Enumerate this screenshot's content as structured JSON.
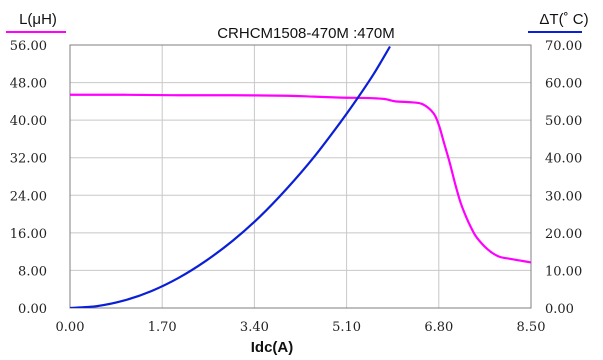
{
  "chart_data": {
    "type": "line",
    "title": "CRHCM1508-470M :470M",
    "xlabel": "Idc(A)",
    "ylabel_left": "L(μH)",
    "ylabel_right": "ΔT(˚ C)",
    "xlim": [
      0,
      8.5
    ],
    "ylim_left": [
      0,
      56
    ],
    "ylim_right": [
      0,
      70
    ],
    "x_ticks": [
      "0.00",
      "1.70",
      "3.40",
      "5.10",
      "6.80",
      "8.50"
    ],
    "y_left_ticks": [
      "0.00",
      "8.00",
      "16.00",
      "24.00",
      "32.00",
      "40.00",
      "48.00",
      "56.00"
    ],
    "y_right_ticks": [
      "0.00",
      "10.00",
      "20.00",
      "30.00",
      "40.00",
      "50.00",
      "60.00",
      "70.00"
    ],
    "grid": true,
    "series": [
      {
        "name": "L(μH)",
        "axis": "left",
        "color": "#ff00ff",
        "x": [
          0.0,
          1.0,
          2.0,
          3.0,
          4.0,
          4.5,
          5.0,
          5.5,
          5.8,
          6.0,
          6.3,
          6.5,
          6.7,
          6.8,
          6.9,
          7.0,
          7.1,
          7.2,
          7.3,
          7.4,
          7.5,
          7.7,
          7.9,
          8.1,
          8.3,
          8.5
        ],
        "y": [
          45.4,
          45.4,
          45.3,
          45.3,
          45.2,
          45.0,
          44.8,
          44.7,
          44.5,
          44.0,
          43.8,
          43.4,
          41.5,
          39.0,
          35.0,
          31.0,
          26.5,
          22.5,
          19.5,
          17.0,
          15.0,
          12.5,
          11.0,
          10.5,
          10.1,
          9.7
        ]
      },
      {
        "name": "ΔT(˚ C)",
        "axis": "right",
        "color": "#0a1fd6",
        "x": [
          0.0,
          0.5,
          1.0,
          1.5,
          2.0,
          2.5,
          3.0,
          3.5,
          4.0,
          4.5,
          5.0,
          5.3,
          5.6,
          5.9
        ],
        "y": [
          0.0,
          0.5,
          2.0,
          4.5,
          8.0,
          12.5,
          17.9,
          24.3,
          31.8,
          40.2,
          49.7,
          55.8,
          62.3,
          69.6
        ]
      }
    ]
  }
}
